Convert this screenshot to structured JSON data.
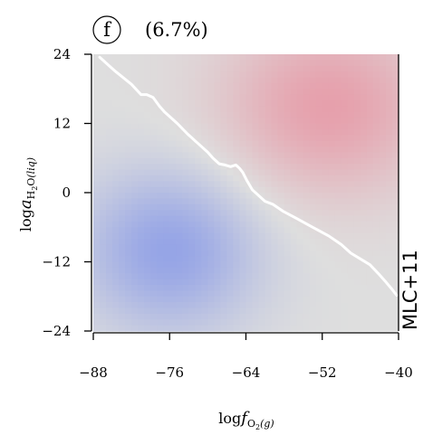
{
  "chart_data": {
    "type": "heatmap",
    "panel_letter": "f",
    "title": "(6.7%)",
    "side_label": "MLC+11",
    "xlabel": {
      "pre": "log",
      "var": "f",
      "sub": "O",
      "subsub": "2",
      "paren": "(g)"
    },
    "ylabel": {
      "pre": "log",
      "var": "a",
      "sub": "H",
      "subsub": "2",
      "mid": "O",
      "paren": "(liq)"
    },
    "xlim": [
      -88,
      -40
    ],
    "ylim": [
      -24,
      24
    ],
    "x_ticks": [
      -88,
      -76,
      -64,
      -52,
      -40
    ],
    "x_tick_labels": [
      "−88",
      "−76",
      "−64",
      "−52",
      "−40"
    ],
    "y_ticks": [
      -24,
      -12,
      0,
      12,
      24
    ],
    "y_tick_labels": [
      "−24",
      "−12",
      "0",
      "12",
      "24"
    ],
    "colors": {
      "positive": "#e6a0ac",
      "negative": "#95a4e6",
      "neutral": "#dedede",
      "boundary": "#ffffff"
    },
    "blobs": [
      {
        "x": -51,
        "y": 15,
        "amp": 1.0,
        "sx": 12,
        "sy": 11
      },
      {
        "x": -76,
        "y": -10,
        "amp": -1.0,
        "sx": 10,
        "sy": 10
      }
    ],
    "boundary": {
      "x": [
        -87.0,
        -84.5,
        -82.0,
        -80.5,
        -79.6,
        -78.6,
        -77.6,
        -76.8,
        -75.8,
        -74.8,
        -73.2,
        -71.5,
        -70.0,
        -69.2,
        -68.2,
        -67.3,
        -66.4,
        -65.6,
        -65.0,
        -64.5,
        -63.8,
        -63.0,
        -62.0,
        -61.0,
        -59.8,
        -58.2,
        -56.0,
        -53.5,
        -51.0,
        -49.0,
        -47.5,
        -46.0,
        -44.5,
        -43.2,
        -42.0,
        -41.0,
        -40.3
      ],
      "y": [
        23.5,
        21.0,
        18.8,
        17.0,
        17.0,
        16.5,
        15.0,
        14.0,
        13.0,
        12.0,
        10.2,
        8.5,
        7.0,
        6.0,
        5.0,
        4.8,
        4.5,
        4.8,
        4.2,
        3.5,
        2.0,
        0.5,
        -0.5,
        -1.5,
        -2.0,
        -3.2,
        -4.5,
        -6.0,
        -7.5,
        -9.0,
        -10.5,
        -11.5,
        -12.5,
        -14.0,
        -15.5,
        -16.8,
        -17.8
      ]
    }
  }
}
